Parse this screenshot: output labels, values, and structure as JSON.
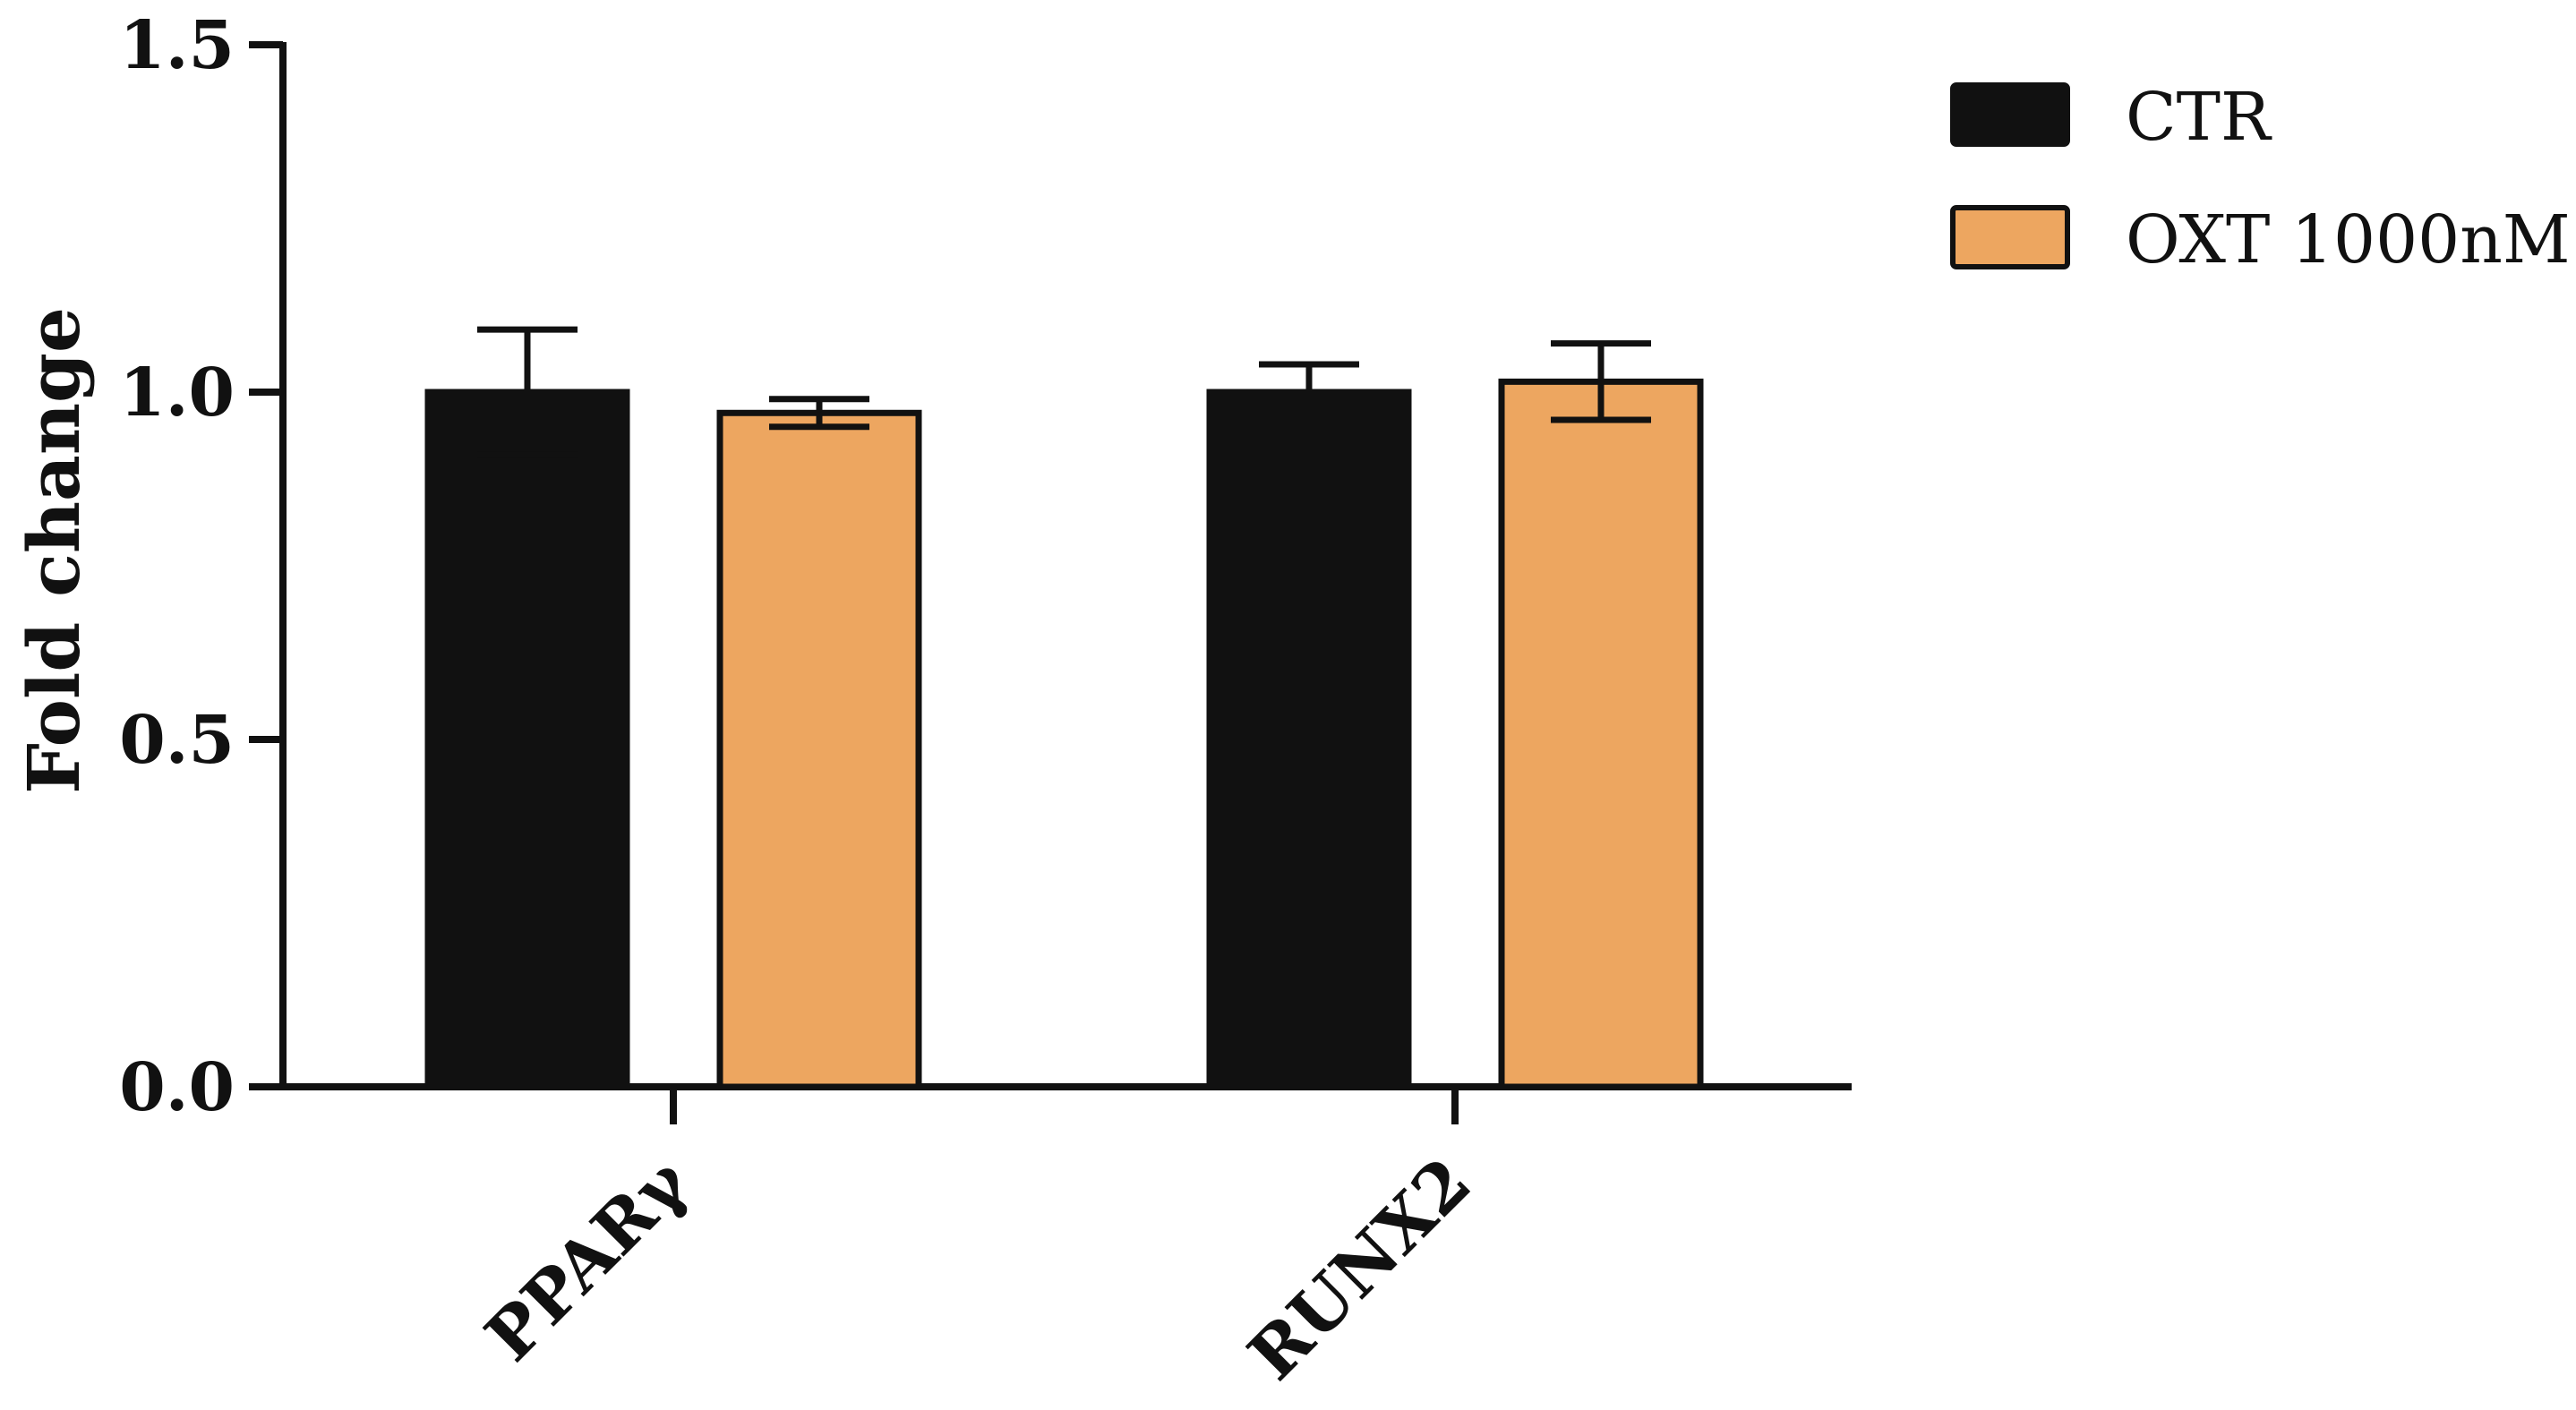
{
  "chart_data": {
    "type": "bar",
    "ylabel": "Fold change",
    "xlabel": "",
    "ylim": [
      0,
      1.5
    ],
    "yticks": [
      0.0,
      0.5,
      1.0,
      1.5
    ],
    "ytick_labels": [
      "0.0",
      "0.5",
      "1.0",
      "1.5"
    ],
    "categories": [
      "PPARγ",
      "RUNX2"
    ],
    "series": [
      {
        "name": "CTR",
        "color": "#111111",
        "values": [
          1.0,
          1.0
        ],
        "errors": [
          0.09,
          0.04
        ]
      },
      {
        "name": "OXT 1000nM",
        "color": "#eda660",
        "values": [
          0.97,
          1.015
        ],
        "errors": [
          0.02,
          0.055
        ]
      }
    ],
    "legend_position": "top-right",
    "grid": false
  }
}
